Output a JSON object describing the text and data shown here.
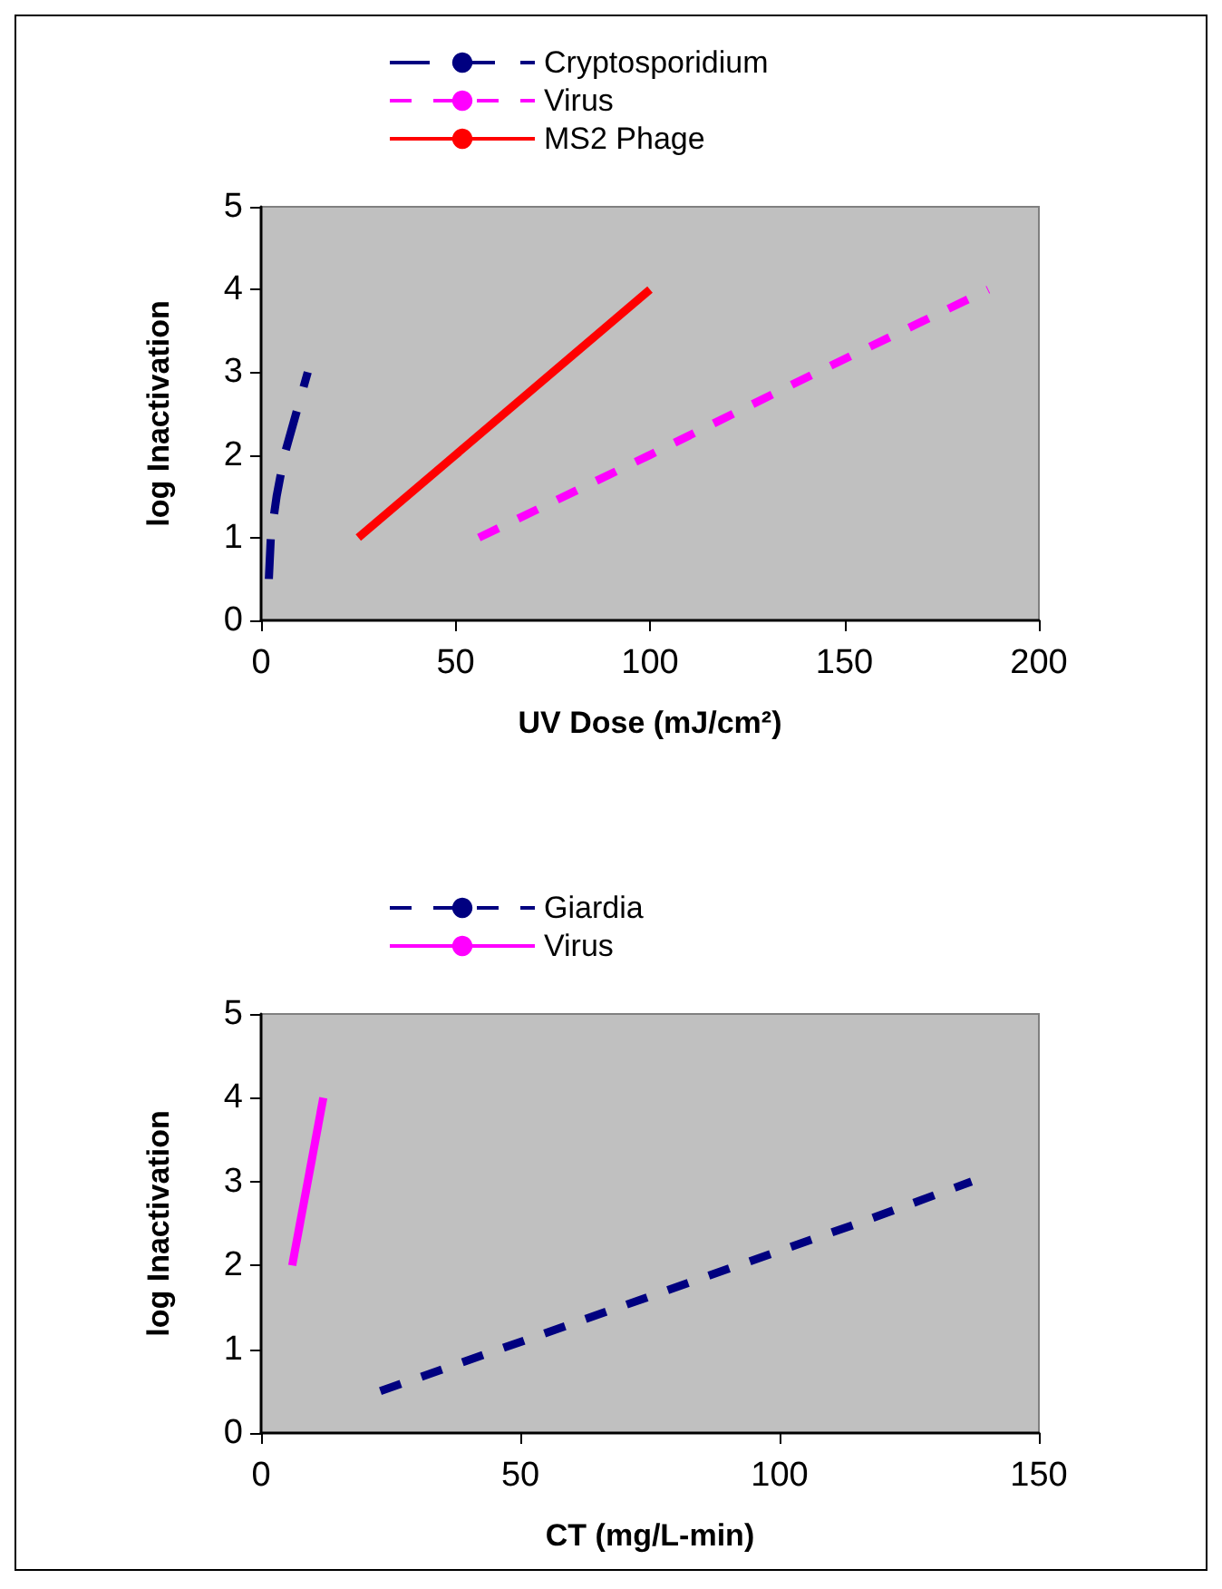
{
  "chart_data": [
    {
      "type": "line",
      "xlabel": "UV Dose (mJ/cm²)",
      "ylabel": "log Inactivation",
      "xlim": [
        0,
        200
      ],
      "xticks": [
        0,
        50,
        100,
        150,
        200
      ],
      "ylim": [
        0,
        5
      ],
      "yticks": [
        0,
        1,
        2,
        3,
        4,
        5
      ],
      "grid": false,
      "legend": "top",
      "marker": "none",
      "series": [
        {
          "name": "Cryptosporidium",
          "color": "#000080",
          "line_style": "dashed",
          "x": [
            2,
            2.5,
            4,
            6,
            9,
            12
          ],
          "values": [
            0.5,
            1,
            1.5,
            2,
            2.5,
            3
          ]
        },
        {
          "name": "Virus",
          "color": "#ff00ff",
          "line_style": "dotted",
          "x": [
            56,
            100,
            143,
            187
          ],
          "values": [
            1,
            2,
            3,
            4
          ]
        },
        {
          "name": "MS2 Phage",
          "color": "#ff0000",
          "line_style": "solid",
          "x": [
            25,
            100
          ],
          "values": [
            1,
            4
          ]
        }
      ]
    },
    {
      "type": "line",
      "xlabel": "CT (mg/L-min)",
      "ylabel": "log Inactivation",
      "xlim": [
        0,
        150
      ],
      "xticks": [
        0,
        50,
        100,
        150
      ],
      "ylim": [
        0,
        5
      ],
      "yticks": [
        0,
        1,
        2,
        3,
        4,
        5
      ],
      "grid": false,
      "legend": "top",
      "marker": "none",
      "series": [
        {
          "name": "Giardia",
          "color": "#000080",
          "line_style": "dotted",
          "x": [
            23,
            46,
            69,
            92,
            115,
            137
          ],
          "values": [
            0.5,
            1,
            1.5,
            2,
            2.5,
            3
          ]
        },
        {
          "name": "Virus",
          "color": "#ff00ff",
          "line_style": "solid",
          "x": [
            6,
            12
          ],
          "values": [
            2,
            4
          ]
        }
      ]
    }
  ]
}
